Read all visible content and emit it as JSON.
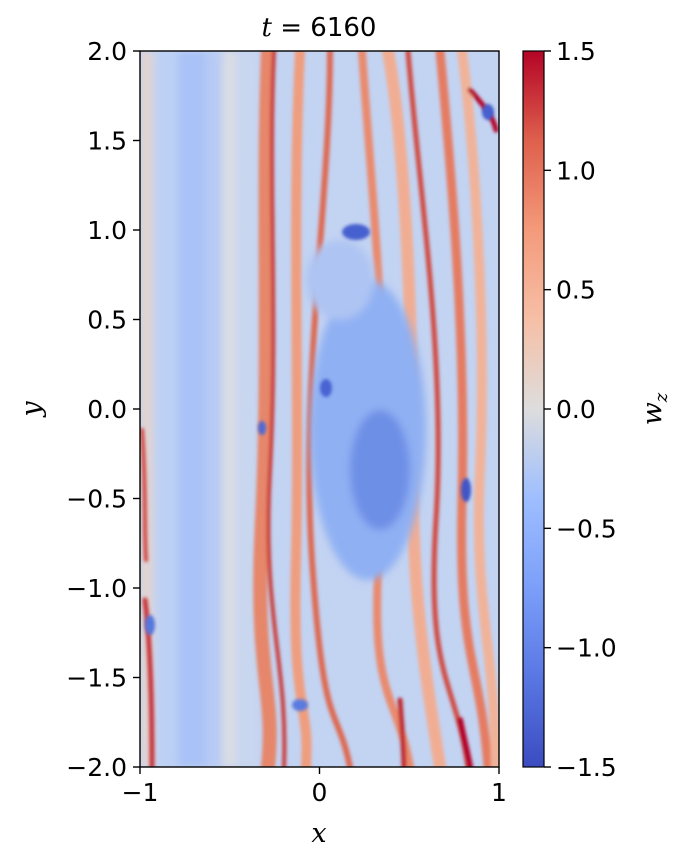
{
  "chart_data": {
    "type": "heatmap",
    "title": "t = 6160",
    "title_var": "t",
    "title_value": "6160",
    "xlabel": "x",
    "ylabel": "y",
    "xlim": [
      -1,
      1
    ],
    "ylim": [
      -2,
      2
    ],
    "x_ticks": [
      {
        "value": -1,
        "label": "−1"
      },
      {
        "value": 0,
        "label": "0"
      },
      {
        "value": 1,
        "label": "1"
      }
    ],
    "y_ticks": [
      {
        "value": 2.0,
        "label": "2.0"
      },
      {
        "value": 1.5,
        "label": "1.5"
      },
      {
        "value": 1.0,
        "label": "1.0"
      },
      {
        "value": 0.5,
        "label": "0.5"
      },
      {
        "value": 0.0,
        "label": "0.0"
      },
      {
        "value": -0.5,
        "label": "−0.5"
      },
      {
        "value": -1.0,
        "label": "−1.0"
      },
      {
        "value": -1.5,
        "label": "−1.5"
      },
      {
        "value": -2.0,
        "label": "−2.0"
      }
    ],
    "colorbar": {
      "label": "w_z",
      "label_base": "w",
      "label_sub": "z",
      "colormap": "coolwarm",
      "range": [
        -1.5,
        1.5
      ],
      "ticks": [
        {
          "value": 1.5,
          "label": "1.5"
        },
        {
          "value": 1.0,
          "label": "1.0"
        },
        {
          "value": 0.5,
          "label": "0.5"
        },
        {
          "value": 0.0,
          "label": "0.0"
        },
        {
          "value": -0.5,
          "label": "−0.5"
        },
        {
          "value": -1.0,
          "label": "−1.0"
        },
        {
          "value": -1.5,
          "label": "−1.5"
        }
      ]
    },
    "colors": {
      "min": "#3b4cc0",
      "mid": "#dddddd",
      "max": "#b40426"
    },
    "features": [
      {
        "name": "left-laminar-band",
        "x": [
          -0.98,
          -0.45
        ],
        "y": [
          -2,
          2
        ],
        "value": -0.45
      },
      {
        "name": "central-vortex",
        "x": [
          0.15,
          0.45
        ],
        "y": [
          -0.7,
          0.6
        ],
        "value": -0.9
      },
      {
        "name": "red-shear-filaments",
        "x": [
          -0.35,
          0.95
        ],
        "y": [
          -2,
          2
        ],
        "value": 1.1
      }
    ]
  }
}
